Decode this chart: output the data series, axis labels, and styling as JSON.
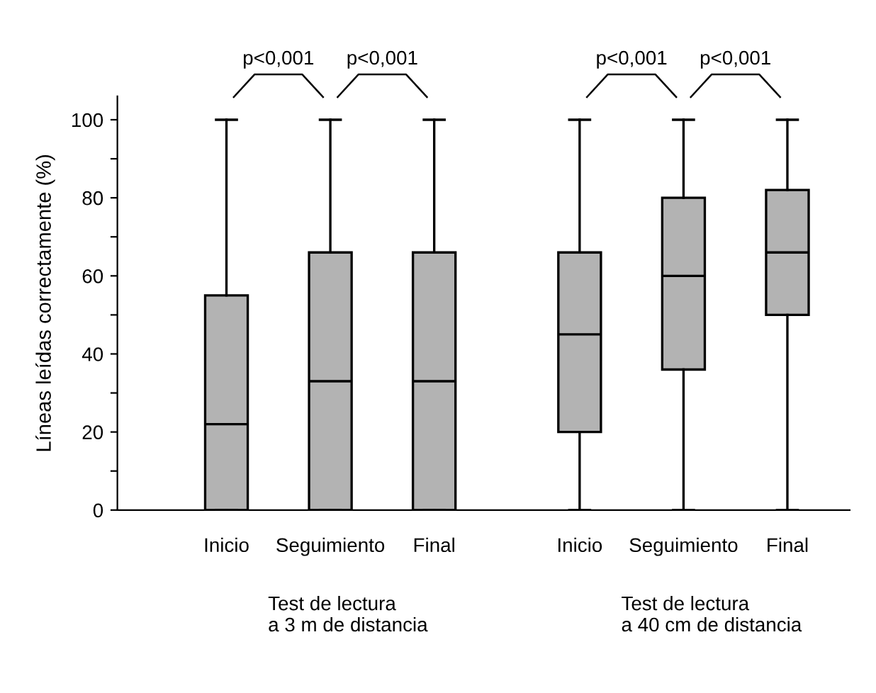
{
  "chart_data": {
    "type": "box",
    "ylabel": "Líneas leídas correctamente (%)",
    "categories": [
      "Inicio",
      "Seguimiento",
      "Final",
      "Inicio",
      "Seguimiento",
      "Final"
    ],
    "boxes": [
      {
        "low": 0,
        "q1": 0,
        "median": 22,
        "q3": 55,
        "high": 100
      },
      {
        "low": 0,
        "q1": 0,
        "median": 33,
        "q3": 66,
        "high": 100
      },
      {
        "low": 0,
        "q1": 0,
        "median": 33,
        "q3": 66,
        "high": 100
      },
      {
        "low": 0,
        "q1": 20,
        "median": 45,
        "q3": 66,
        "high": 100
      },
      {
        "low": 0,
        "q1": 36,
        "median": 60,
        "q3": 80,
        "high": 100
      },
      {
        "low": 0,
        "q1": 50,
        "median": 66,
        "q3": 82,
        "high": 100
      }
    ],
    "color": "#b3b3b3",
    "ylim": [
      0,
      106
    ],
    "yticks": [
      0,
      {
        "value": 10,
        "label": null
      },
      20,
      {
        "value": 30,
        "label": null
      },
      40,
      {
        "value": 50,
        "label": null
      },
      60,
      {
        "value": 70,
        "label": null
      },
      80,
      {
        "value": 90,
        "label": null
      },
      100
    ],
    "grid": false,
    "annotations": [
      "p<0,001",
      "p<0,001",
      "p<0,001",
      "p<0,001",
      "Test de lectura\na 3 m de distancia",
      "Test de lectura\na 40 cm de distancia"
    ]
  }
}
